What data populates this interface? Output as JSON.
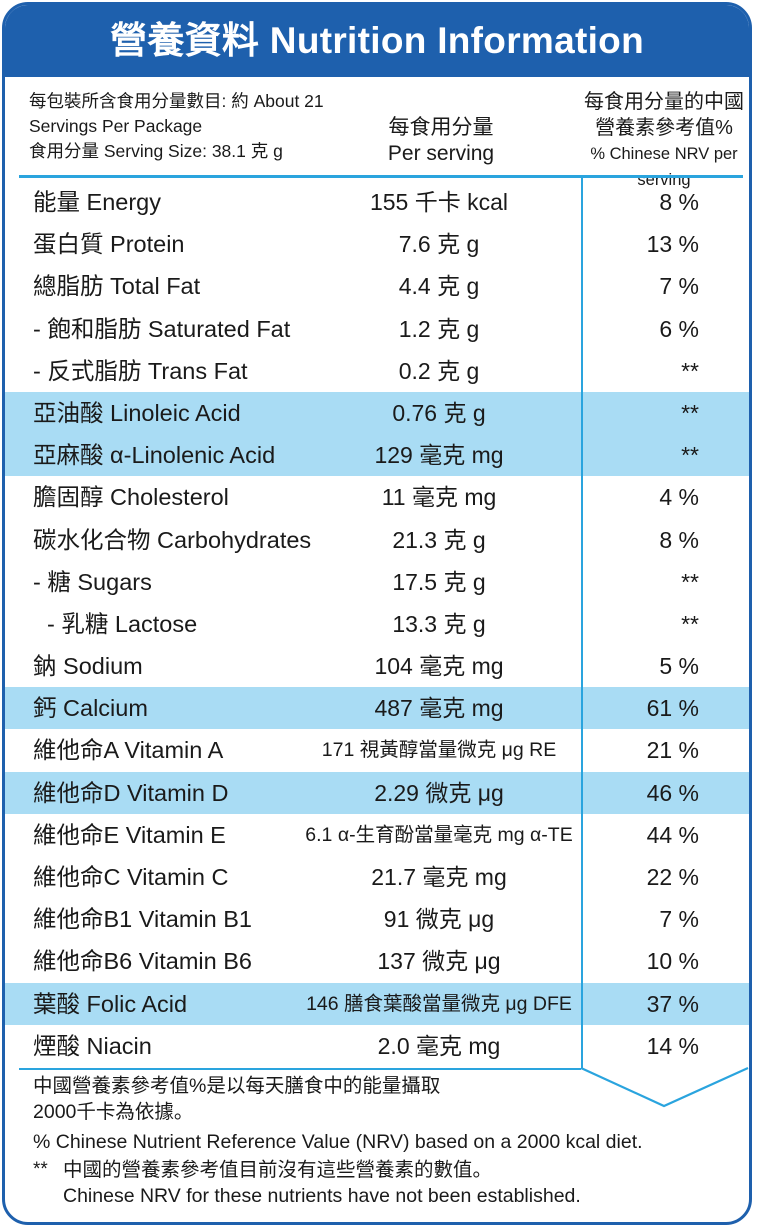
{
  "title": "營養資料 Nutrition Information",
  "header": {
    "servings_line1": "每包裝所含食用分量數目: 約 About 21",
    "servings_line2": "Servings Per Package",
    "serving_size": "食用分量 Serving Size: 38.1 克 g",
    "per_serving_zh": "每食用分量",
    "per_serving_en": "Per serving",
    "nrv_zh_line1": "每食用分量的中國",
    "nrv_zh_line2": "營養素參考值%",
    "nrv_en": "% Chinese NRV per serving"
  },
  "rows": [
    {
      "name": "能量 Energy",
      "value": "155 千卡 kcal",
      "nrv": "8 %"
    },
    {
      "name": "蛋白質 Protein",
      "value": "7.6 克 g",
      "nrv": "13 %"
    },
    {
      "name": "總脂肪 Total Fat",
      "value": "4.4 克 g",
      "nrv": "7 %"
    },
    {
      "name": "- 飽和脂肪 Saturated Fat",
      "value": "1.2 克 g",
      "nrv": "6 %"
    },
    {
      "name": "- 反式脂肪 Trans Fat",
      "value": "0.2 克 g",
      "nrv": "**"
    },
    {
      "name": "亞油酸 Linoleic Acid",
      "value": "0.76 克 g",
      "nrv": "**"
    },
    {
      "name": "亞麻酸 α-Linolenic Acid",
      "value": "129 毫克 mg",
      "nrv": "**"
    },
    {
      "name": "膽固醇 Cholesterol",
      "value": "11 毫克 mg",
      "nrv": "4 %"
    },
    {
      "name": "碳水化合物 Carbohydrates",
      "value": "21.3 克 g",
      "nrv": "8 %"
    },
    {
      "name": "- 糖 Sugars",
      "value": "17.5 克 g",
      "nrv": "**"
    },
    {
      "name": "- 乳糖 Lactose",
      "value": "13.3 克 g",
      "nrv": "**"
    },
    {
      "name": "鈉 Sodium",
      "value": "104 毫克 mg",
      "nrv": "5 %"
    },
    {
      "name": "鈣 Calcium",
      "value": "487 毫克 mg",
      "nrv": "61 %"
    },
    {
      "name": "維他命A Vitamin A",
      "value": "171 視黃醇當量微克 μg RE",
      "nrv": "21 %"
    },
    {
      "name": "維他命D Vitamin D",
      "value": "2.29 微克 μg",
      "nrv": "46 %"
    },
    {
      "name": "維他命E Vitamin E",
      "value": "6.1 α-生育酚當量毫克 mg α-TE",
      "nrv": "44 %"
    },
    {
      "name": "維他命C Vitamin C",
      "value": "21.7 毫克 mg",
      "nrv": "22 %"
    },
    {
      "name": "維他命B1 Vitamin B1",
      "value": "91 微克 μg",
      "nrv": "7 %"
    },
    {
      "name": "維他命B6 Vitamin B6",
      "value": "137 微克 μg",
      "nrv": "10 %"
    },
    {
      "name": "葉酸 Folic Acid",
      "value": "146 膳食葉酸當量微克 μg DFE",
      "nrv": "37 %"
    },
    {
      "name": "煙酸 Niacin",
      "value": "2.0 毫克 mg",
      "nrv": "14 %"
    }
  ],
  "footnotes": {
    "nrv_basis_zh_1": "中國營養素參考值%是以每天膳食中的能量攝取",
    "nrv_basis_zh_2": "2000千卡為依據。",
    "nrv_basis_en": "% Chinese Nutrient Reference Value (NRV) based on a 2000 kcal diet.",
    "asterisk": "**",
    "not_established_zh": "中國的營養素參考值目前沒有這些營養素的數值。",
    "not_established_en": "Chinese NRV for these nutrients have not been established."
  },
  "colors": {
    "brand_blue": "#1e60ad",
    "rule_blue": "#2aa4de",
    "highlight": "#a9dcf4"
  }
}
